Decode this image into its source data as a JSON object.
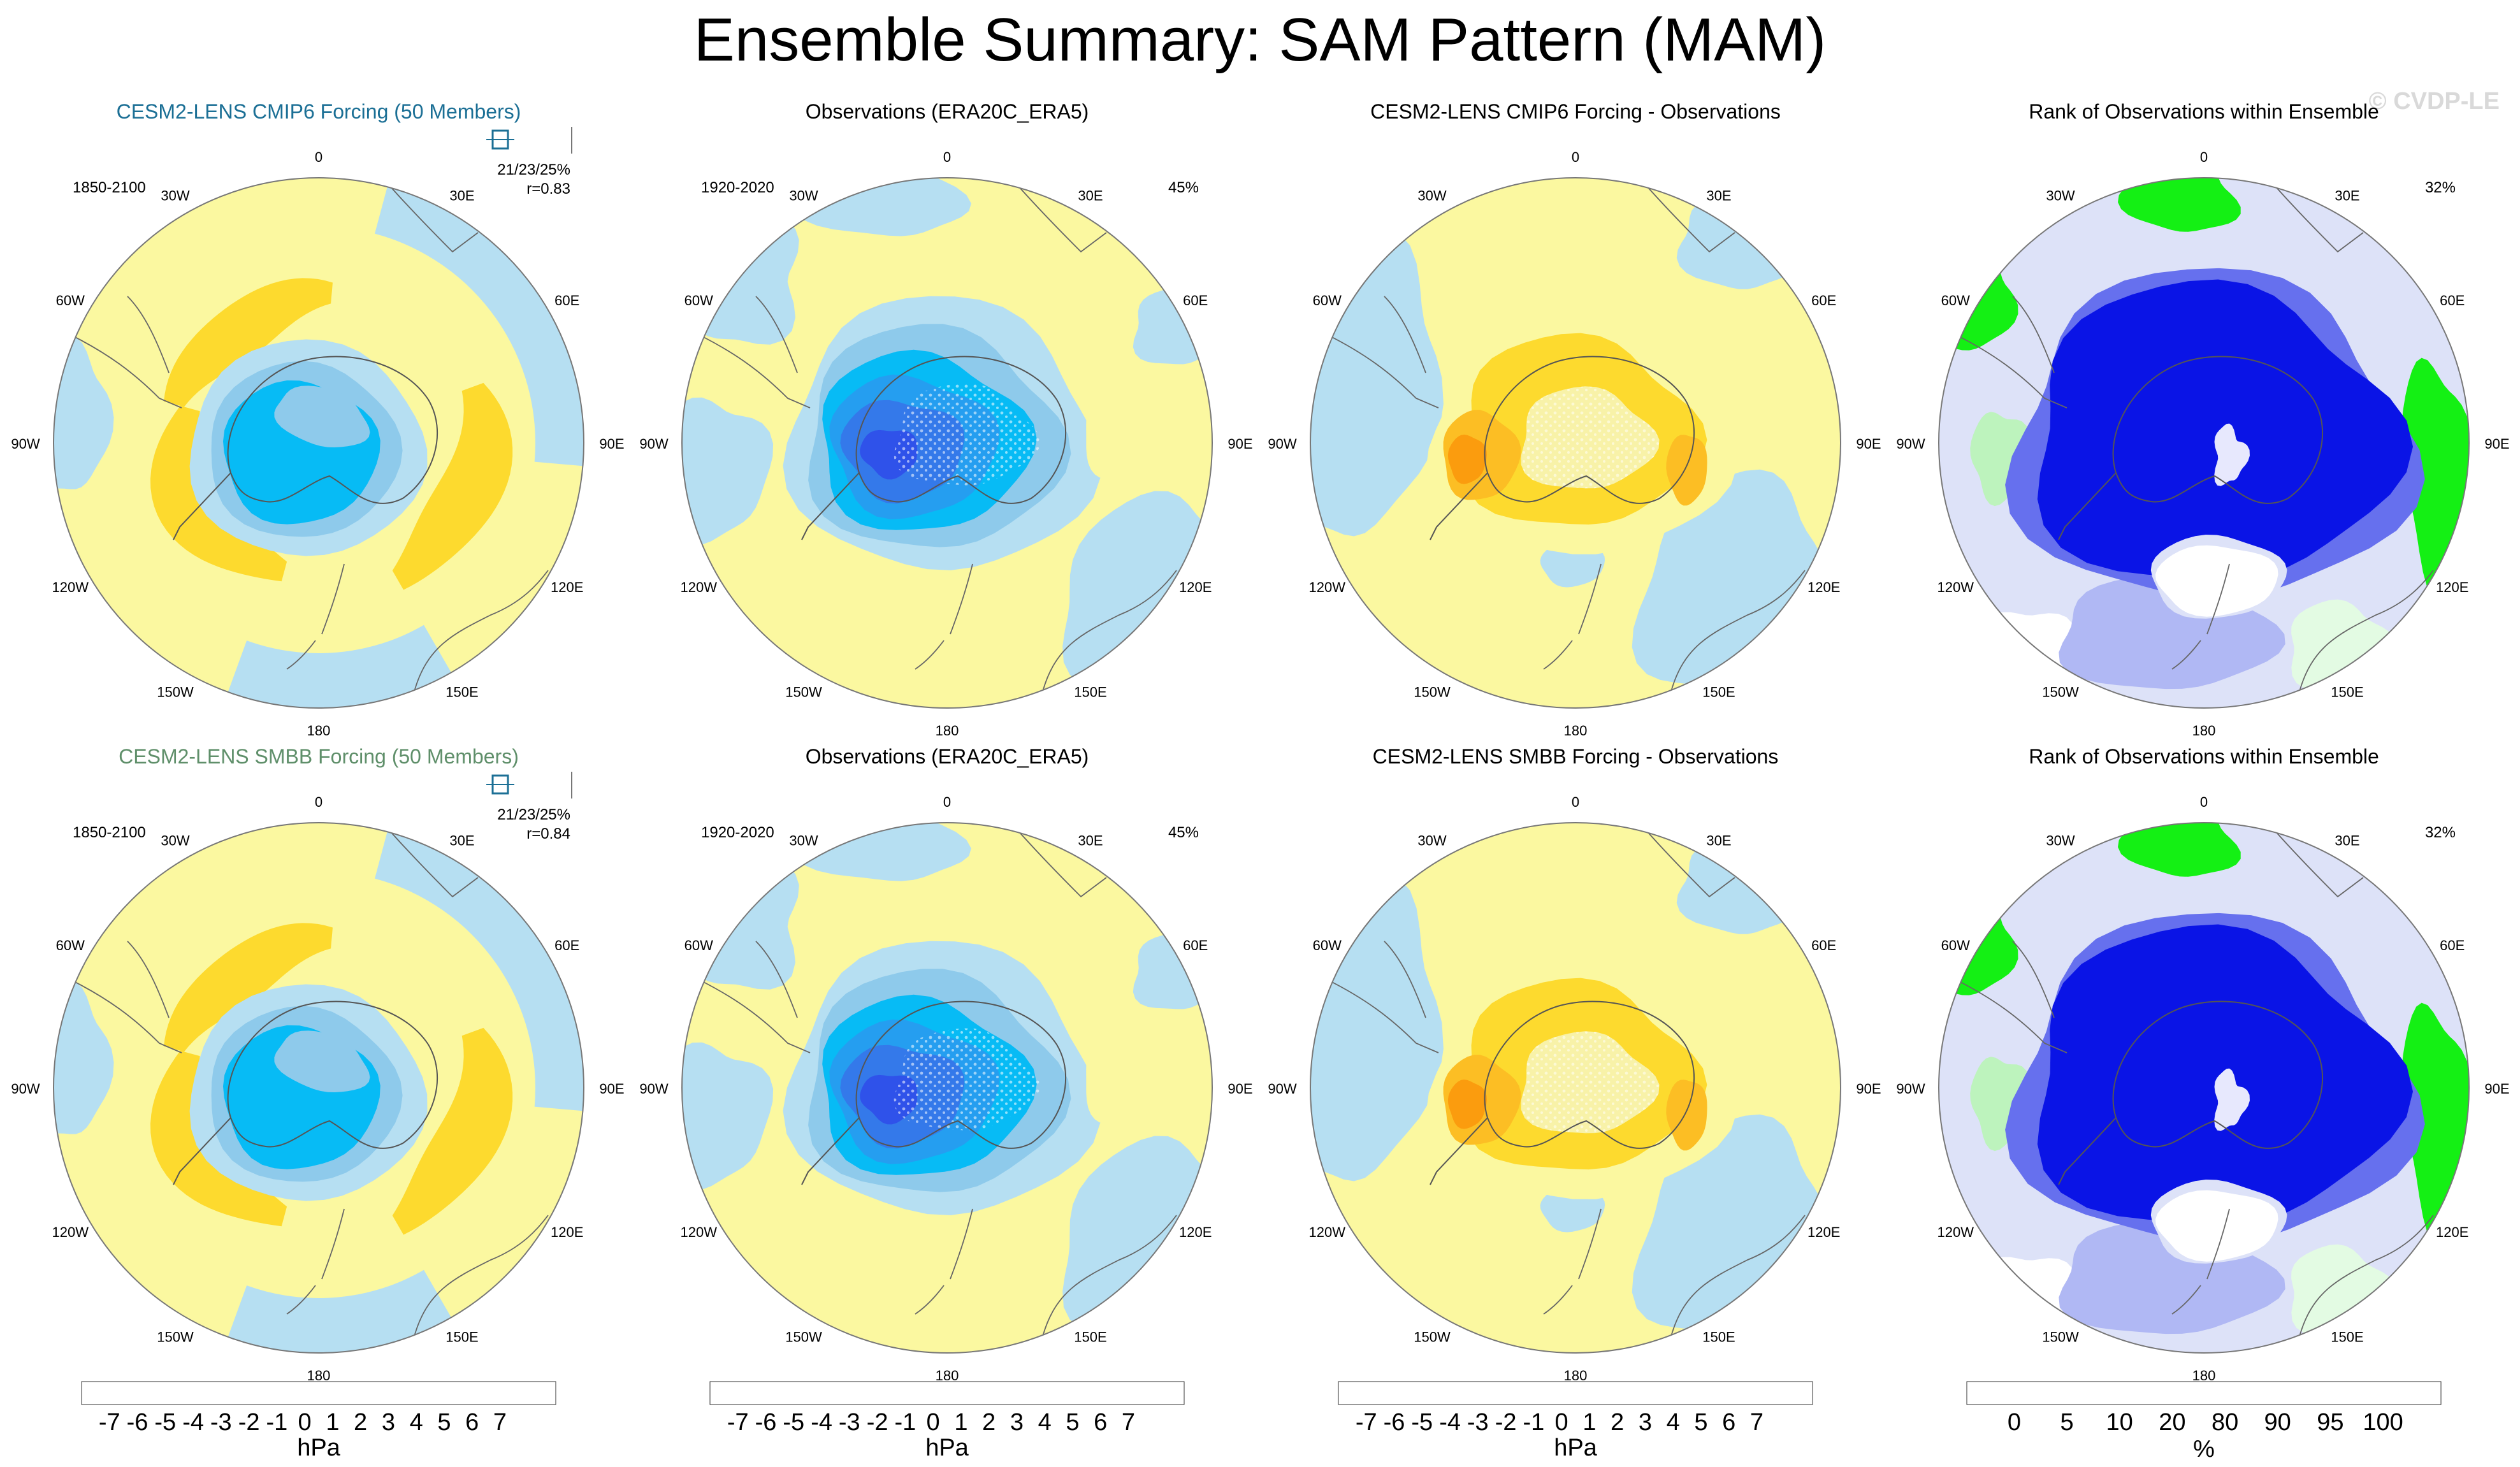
{
  "figure": {
    "title": "Ensemble Summary: SAM Pattern (MAM)",
    "watermark": "© CVDP-LE"
  },
  "colors": {
    "diverging": [
      "#7b2fe0",
      "#2323ee",
      "#2f52ea",
      "#3479ea",
      "#259ef0",
      "#07bbf5",
      "#8ecaeb",
      "#b6dff2",
      "#fbf8a0",
      "#fdda2e",
      "#fcbe24",
      "#fb9c0e",
      "#fa6c0c",
      "#f22714",
      "#d31b22",
      "#c62128",
      "#f5a3a3"
    ],
    "rank": [
      "#0a14e6",
      "#6670ee",
      "#b0b8f4",
      "#dde2f8",
      "#ffffff",
      "#e3fbe3",
      "#bdf3bd",
      "#8de88d",
      "#14f014"
    ]
  },
  "colorbars": {
    "diverging": {
      "labels": [
        "-7",
        "-6",
        "-5",
        "-4",
        "-3",
        "-2",
        "-1",
        "0",
        "1",
        "2",
        "3",
        "4",
        "5",
        "6",
        "7"
      ],
      "units": "hPa"
    },
    "rank": {
      "labels": [
        "0",
        "5",
        "10",
        "20",
        "80",
        "90",
        "95",
        "100"
      ],
      "units": "%"
    }
  },
  "map_labels": {
    "lon": [
      "0",
      "30E",
      "60E",
      "90E",
      "120E",
      "150E",
      "180",
      "150W",
      "120W",
      "90W",
      "60W",
      "30W"
    ]
  },
  "chart_data": [
    {
      "type": "heatmap",
      "panel": "r1c1",
      "title": "CESM2-LENS CMIP6 Forcing (50 Members)",
      "period": "1850-2100",
      "stats": "21/23/25%",
      "corr": "r=0.83",
      "kind": "ensemble_mean",
      "units": "hPa",
      "min_value": -3,
      "max_value": 2,
      "features": [
        {
          "lon": 0,
          "rad": 0.0,
          "value": -3
        },
        {
          "lon": -30,
          "rad": 0.55,
          "value": 2
        },
        {
          "lon": 100,
          "rad": 0.6,
          "value": 2
        },
        {
          "lon": -160,
          "rad": 0.55,
          "value": 2
        }
      ]
    },
    {
      "type": "heatmap",
      "panel": "r1c2",
      "title": "Observations (ERA20C_ERA5)",
      "period": "1920-2020",
      "pct": "45%",
      "kind": "observations",
      "units": "hPa",
      "min_value": -6,
      "max_value": 1,
      "features": [
        {
          "lon": -85,
          "rad": 0.3,
          "value": -6
        },
        {
          "lon": 95,
          "rad": 0.62,
          "value": 1
        },
        {
          "lon": -180,
          "rad": 0.6,
          "value": 1
        }
      ]
    },
    {
      "type": "heatmap",
      "panel": "r1c3",
      "title": "CESM2-LENS CMIP6 Forcing - Observations",
      "pct": "",
      "kind": "difference",
      "units": "hPa",
      "min_value": -1,
      "max_value": 4,
      "features": [
        {
          "lon": -85,
          "rad": 0.33,
          "value": 4
        },
        {
          "lon": 105,
          "rad": 0.35,
          "value": 3
        },
        {
          "lon": 175,
          "rad": 0.4,
          "value": -1
        }
      ]
    },
    {
      "type": "heatmap",
      "panel": "r1c4",
      "title": "Rank of Observations within Ensemble",
      "pct": "32%",
      "kind": "rank",
      "units": "%",
      "min_value": 0,
      "max_value": 100,
      "features": [
        {
          "lon": 0,
          "rad": 0.3,
          "value": 0
        },
        {
          "lon": 0,
          "rad": 0.88,
          "value": 100
        },
        {
          "lon": -60,
          "rad": 0.82,
          "value": 100
        },
        {
          "lon": 110,
          "rad": 0.82,
          "value": 100
        },
        {
          "lon": 180,
          "rad": 0.4,
          "value": 50
        }
      ]
    },
    {
      "type": "heatmap",
      "panel": "r2c1",
      "title": "CESM2-LENS SMBB Forcing (50 Members)",
      "period": "1850-2100",
      "stats": "21/23/25%",
      "corr": "r=0.84",
      "kind": "ensemble_mean",
      "units": "hPa",
      "min_value": -3,
      "max_value": 2,
      "features": [
        {
          "lon": 0,
          "rad": 0.0,
          "value": -3
        },
        {
          "lon": -30,
          "rad": 0.55,
          "value": 2
        },
        {
          "lon": 100,
          "rad": 0.6,
          "value": 2
        },
        {
          "lon": -160,
          "rad": 0.55,
          "value": 2
        }
      ]
    },
    {
      "type": "heatmap",
      "panel": "r2c2",
      "title": "Observations (ERA20C_ERA5)",
      "period": "1920-2020",
      "pct": "45%",
      "kind": "observations",
      "units": "hPa",
      "min_value": -6,
      "max_value": 1,
      "features": [
        {
          "lon": -85,
          "rad": 0.3,
          "value": -6
        },
        {
          "lon": 95,
          "rad": 0.62,
          "value": 1
        },
        {
          "lon": -180,
          "rad": 0.6,
          "value": 1
        }
      ]
    },
    {
      "type": "heatmap",
      "panel": "r2c3",
      "title": "CESM2-LENS SMBB Forcing - Observations",
      "pct": "",
      "kind": "difference",
      "units": "hPa",
      "min_value": -1,
      "max_value": 4,
      "features": [
        {
          "lon": -85,
          "rad": 0.33,
          "value": 4
        },
        {
          "lon": 105,
          "rad": 0.35,
          "value": 3
        },
        {
          "lon": 175,
          "rad": 0.4,
          "value": -1
        }
      ]
    },
    {
      "type": "heatmap",
      "panel": "r2c4",
      "title": "Rank of Observations within Ensemble",
      "pct": "32%",
      "kind": "rank",
      "units": "%",
      "min_value": 0,
      "max_value": 100,
      "features": [
        {
          "lon": 0,
          "rad": 0.3,
          "value": 0
        },
        {
          "lon": 0,
          "rad": 0.88,
          "value": 100
        },
        {
          "lon": -60,
          "rad": 0.82,
          "value": 100
        },
        {
          "lon": 110,
          "rad": 0.82,
          "value": 100
        },
        {
          "lon": 180,
          "rad": 0.4,
          "value": 50
        }
      ]
    }
  ]
}
